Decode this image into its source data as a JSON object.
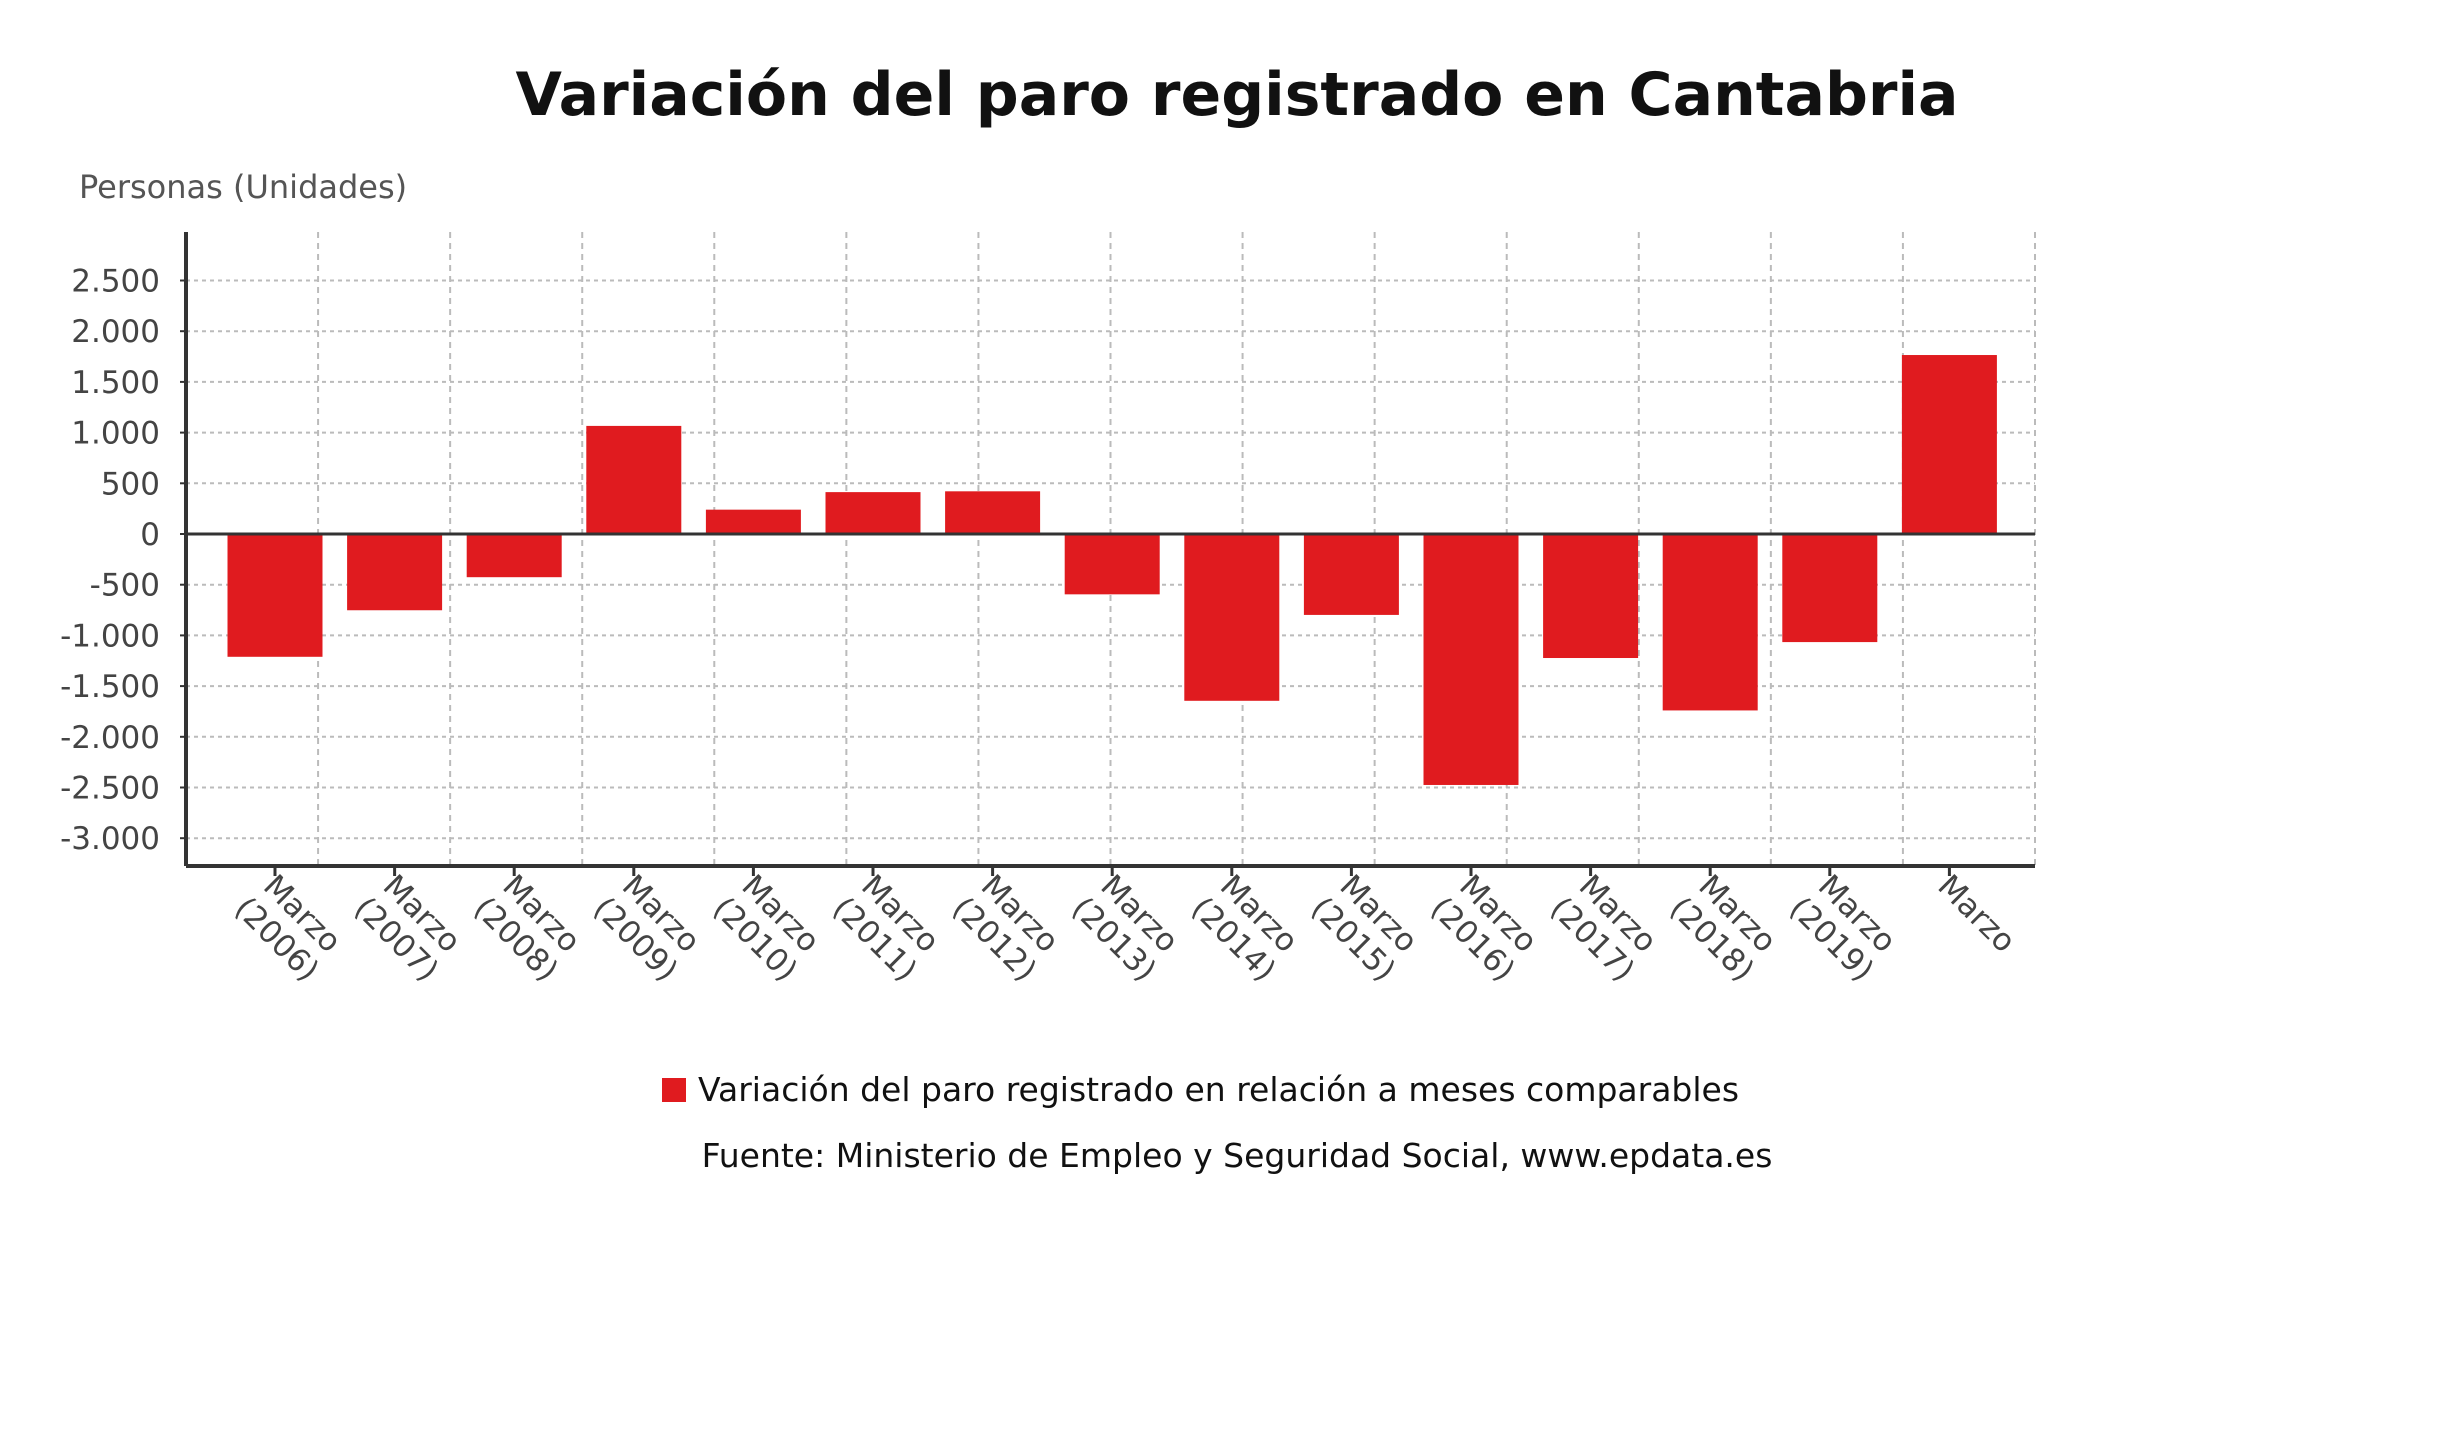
{
  "chart_data": {
    "type": "bar",
    "title": "Variación del paro registrado en Cantabria",
    "ylabel": "Personas (Unidades)",
    "xlabel": "",
    "ylim": [
      -3250,
      2950
    ],
    "yticks": [
      2500,
      2000,
      1500,
      1000,
      500,
      0,
      -500,
      -1000,
      -1500,
      -2000,
      -2500,
      -3000
    ],
    "ytick_labels": [
      "2.500",
      "2.000",
      "1.500",
      "1.000",
      "500",
      "0",
      "-500",
      "-1.000",
      "-1.500",
      "-2.000",
      "-2.500",
      "-3.000"
    ],
    "grid": true,
    "categories": [
      [
        "Marzo",
        "(2006)"
      ],
      [
        "Marzo",
        "(2007)"
      ],
      [
        "Marzo",
        "(2008)"
      ],
      [
        "Marzo",
        "(2009)"
      ],
      [
        "Marzo",
        "(2010)"
      ],
      [
        "Marzo",
        "(2011)"
      ],
      [
        "Marzo",
        "(2012)"
      ],
      [
        "Marzo",
        "(2013)"
      ],
      [
        "Marzo",
        "(2014)"
      ],
      [
        "Marzo",
        "(2015)"
      ],
      [
        "Marzo",
        "(2016)"
      ],
      [
        "Marzo",
        "(2017)"
      ],
      [
        "Marzo",
        "(2018)"
      ],
      [
        "Marzo",
        "(2019)"
      ],
      [
        "Marzo"
      ]
    ],
    "series": [
      {
        "name": "Variación del paro registrado en relación a meses comparables",
        "color": "#e01b1f",
        "values": [
          -1211,
          -752,
          -426,
          1066,
          240,
          413,
          421,
          -595,
          -1645,
          -798,
          -2475,
          -1223,
          -1740,
          -1066,
          1765
        ]
      }
    ],
    "legend_position": "bottom",
    "source": "Fuente: Ministerio de Empleo y Seguridad Social, www.epdata.es"
  }
}
